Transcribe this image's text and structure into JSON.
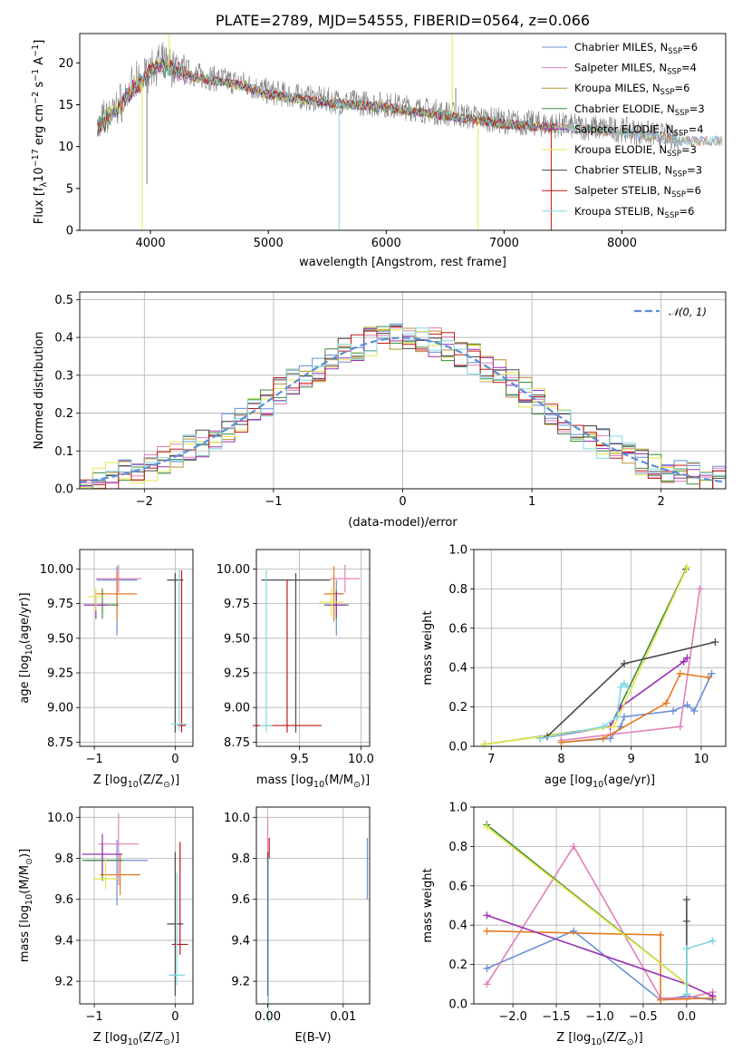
{
  "colors": {
    "chabrier_miles": "#6a8fd6",
    "salpeter_miles": "#e080b8",
    "kroupa_miles": "#b8902a",
    "chabrier_elodie": "#3f8a3f",
    "salpeter_elodie": "#9a30b0",
    "kroupa_elodie": "#e6e64a",
    "chabrier_stelib": "#4a4a4a",
    "salpeter_stelib": "#c01818",
    "kroupa_stelib": "#80d8e0",
    "orange": "#e87a20",
    "normal_curve": "#5a8fd6",
    "spectrum": "#808080"
  },
  "chart_data": [
    {
      "id": "spectrum",
      "type": "line",
      "title": "PLATE=2789, MJD=54555, FIBERID=0564, z=0.066",
      "xlabel": "wavelength [Angstrom, rest frame]",
      "ylabel": "Flux [f",
      "ylabel_sub": "λ",
      "ylabel_rest": "10",
      "ylabel_sup": "−17",
      "ylabel_tail": " erg cm",
      "ylabel_sup2": "−2",
      "ylabel_tail2": " s",
      "ylabel_sup3": "−1",
      "ylabel_tail3": " A",
      "ylabel_sup4": "−1",
      "ylabel_end": "]",
      "xlim": [
        3400,
        8880
      ],
      "ylim": [
        0,
        23.5
      ],
      "xticks": [
        4000,
        5000,
        6000,
        7000,
        8000
      ],
      "yticks": [
        0,
        5,
        10,
        15,
        20
      ],
      "legend_position": "top-right",
      "continuum": [
        [
          3550,
          12.5
        ],
        [
          3700,
          14.5
        ],
        [
          3850,
          17
        ],
        [
          3950,
          18.5
        ],
        [
          4050,
          20
        ],
        [
          4200,
          19.5
        ],
        [
          4400,
          18.5
        ],
        [
          4600,
          18
        ],
        [
          4800,
          17.5
        ],
        [
          5000,
          16.5
        ],
        [
          5500,
          15.5
        ],
        [
          6000,
          15
        ],
        [
          6500,
          14
        ],
        [
          7000,
          13
        ],
        [
          7500,
          12.5
        ],
        [
          8000,
          12
        ],
        [
          8500,
          11
        ]
      ],
      "spikes": [
        [
          3930,
          0
        ],
        [
          3970,
          5.5
        ],
        [
          4160,
          23.5
        ],
        [
          5600,
          0
        ],
        [
          6560,
          23.5
        ],
        [
          6590,
          17
        ],
        [
          6780,
          0
        ],
        [
          7400,
          0
        ]
      ],
      "legend": [
        {
          "pre": "Chabrier MILES, N",
          "sub": "SSP",
          "post": "=6",
          "color": "chabrier_miles"
        },
        {
          "pre": "Salpeter MILES, N",
          "sub": "SSP",
          "post": "=4",
          "color": "salpeter_miles"
        },
        {
          "pre": "Kroupa MILES, N",
          "sub": "SSP",
          "post": "=6",
          "color": "kroupa_miles"
        },
        {
          "pre": "Chabrier ELODIE, N",
          "sub": "SSP",
          "post": "=3",
          "color": "chabrier_elodie"
        },
        {
          "pre": "Salpeter ELODIE, N",
          "sub": "SSP",
          "post": "=4",
          "color": "salpeter_elodie"
        },
        {
          "pre": "Kroupa ELODIE, N",
          "sub": "SSP",
          "post": "=3",
          "color": "kroupa_elodie"
        },
        {
          "pre": "Chabrier STELIB, N",
          "sub": "SSP",
          "post": "=3",
          "color": "chabrier_stelib"
        },
        {
          "pre": "Salpeter STELIB, N",
          "sub": "SSP",
          "post": "=6",
          "color": "salpeter_stelib"
        },
        {
          "pre": "Kroupa STELIB, N",
          "sub": "SSP",
          "post": "=6",
          "color": "kroupa_stelib"
        }
      ]
    },
    {
      "id": "residuals",
      "type": "histogram",
      "xlabel": "(data-model)/error",
      "ylabel": "Normed distribution",
      "xlim": [
        -2.5,
        2.5
      ],
      "ylim": [
        0,
        0.52
      ],
      "xticks": [
        -2,
        -1,
        0,
        1,
        2
      ],
      "yticks": [
        0.0,
        0.1,
        0.2,
        0.3,
        0.4,
        0.5
      ],
      "grid": true,
      "legend_position": "top-right",
      "legend": "𝒩(0, 1)",
      "bin_width": 0.1,
      "normal_mean": 0,
      "normal_sigma": 1
    },
    {
      "id": "age_vs_Z",
      "type": "errorbar",
      "xlabel": "Z [log",
      "xlabel_sub": "10",
      "xlabel_tail": "(Z/Z",
      "xlabel_sub2": "⊙",
      "xlabel_end": ")]",
      "ylabel": "age  [log",
      "ylabel_sub": "10",
      "ylabel_tail": "(age/yr)]",
      "xlim": [
        -1.18,
        0.22
      ],
      "ylim": [
        8.72,
        10.14
      ],
      "xticks": [
        -1,
        0
      ],
      "yticks": [
        8.75,
        9.0,
        9.25,
        9.5,
        9.75,
        10.0
      ],
      "grid": true,
      "points": [
        {
          "color": "chabrier_miles",
          "x": -0.72,
          "xerr": 0.25,
          "y": 9.92,
          "yerr": [
            0.4,
            0.1
          ]
        },
        {
          "color": "salpeter_miles",
          "x": -0.7,
          "xerr": 0.28,
          "y": 9.93,
          "yerr": [
            0.1,
            0.1
          ]
        },
        {
          "color": "orange",
          "x": -0.72,
          "xerr": 0.25,
          "y": 9.82,
          "yerr": [
            0.2,
            0.16
          ]
        },
        {
          "color": "chabrier_elodie",
          "x": -0.9,
          "xerr": 0.2,
          "y": 9.74,
          "yerr": [
            0.1,
            0.12
          ]
        },
        {
          "color": "salpeter_elodie",
          "x": -0.98,
          "xerr": 0.15,
          "y": 9.74,
          "yerr": [
            0.1,
            0.1
          ]
        },
        {
          "color": "kroupa_elodie",
          "x": -0.98,
          "xerr": 0.1,
          "y": 9.8,
          "yerr": [
            0.1,
            0.06
          ]
        },
        {
          "color": "chabrier_stelib",
          "x": 0.0,
          "xerr": 0.1,
          "y": 9.92,
          "yerr": [
            1.1,
            0.05
          ]
        },
        {
          "color": "salpeter_stelib",
          "x": 0.08,
          "xerr": 0.05,
          "y": 8.87,
          "yerr": [
            0.05,
            1.12
          ]
        },
        {
          "color": "kroupa_stelib",
          "x": 0.05,
          "xerr": 0.1,
          "y": 8.88,
          "yerr": [
            0.05,
            1.12
          ]
        }
      ]
    },
    {
      "id": "age_vs_mass",
      "type": "errorbar",
      "xlabel": "mass [log",
      "xlabel_sub": "10",
      "xlabel_tail": "(M/M",
      "xlabel_sub2": "⊙",
      "xlabel_end": ")]",
      "xlim": [
        9.15,
        10.07
      ],
      "ylim": [
        8.72,
        10.14
      ],
      "xticks": [
        9.5,
        10.0
      ],
      "yticks": [
        8.75,
        9.0,
        9.25,
        9.5,
        9.75,
        10.0
      ],
      "grid": true,
      "points": [
        {
          "color": "chabrier_miles",
          "x": 9.8,
          "xerr": 0.06,
          "y": 9.82,
          "yerr": [
            0.3,
            0.1
          ]
        },
        {
          "color": "salpeter_miles",
          "x": 9.87,
          "xerr": 0.12,
          "y": 9.93,
          "yerr": [
            0.1,
            0.1
          ]
        },
        {
          "color": "orange",
          "x": 9.78,
          "xerr": 0.08,
          "y": 9.82,
          "yerr": [
            0.2,
            0.2
          ]
        },
        {
          "color": "chabrier_elodie",
          "x": 9.8,
          "xerr": 0.1,
          "y": 9.74,
          "yerr": [
            0.1,
            0.1
          ]
        },
        {
          "color": "salpeter_elodie",
          "x": 9.8,
          "xerr": 0.08,
          "y": 9.74,
          "yerr": [
            0.08,
            0.1
          ]
        },
        {
          "color": "kroupa_elodie",
          "x": 9.76,
          "xerr": 0.1,
          "y": 9.76,
          "yerr": [
            0.1,
            0.1
          ]
        },
        {
          "color": "chabrier_stelib",
          "x": 9.47,
          "xerr": 0.28,
          "y": 9.92,
          "yerr": [
            1.1,
            0.05
          ]
        },
        {
          "color": "salpeter_stelib",
          "x": 9.4,
          "xerr": 0.28,
          "y": 8.87,
          "yerr": [
            0.05,
            1.05
          ]
        },
        {
          "color": "kroupa_stelib",
          "x": 9.23,
          "xerr": 0.05,
          "y": 8.87,
          "yerr": [
            0.05,
            1.12
          ]
        }
      ]
    },
    {
      "id": "mass_weight_vs_age",
      "type": "line",
      "xlabel": "age  [log",
      "xlabel_sub": "10",
      "xlabel_tail": "(age/yr)]",
      "ylabel": "mass weight",
      "xlim": [
        6.75,
        10.35
      ],
      "ylim": [
        0,
        1.0
      ],
      "xticks": [
        7,
        8,
        9,
        10
      ],
      "yticks": [
        0.0,
        0.2,
        0.4,
        0.6,
        0.8,
        1.0
      ],
      "grid": true,
      "series": [
        {
          "color": "chabrier_miles",
          "x": [
            8.0,
            8.7,
            8.85,
            8.9,
            9.6,
            9.8,
            9.9,
            10.15
          ],
          "y": [
            0.02,
            0.04,
            0.1,
            0.15,
            0.18,
            0.21,
            0.18,
            0.37
          ]
        },
        {
          "color": "salpeter_miles",
          "x": [
            8.0,
            8.7,
            9.7,
            9.98
          ],
          "y": [
            0.03,
            0.06,
            0.1,
            0.8
          ]
        },
        {
          "color": "orange",
          "x": [
            8.0,
            8.6,
            9.5,
            9.7,
            10.1
          ],
          "y": [
            0.02,
            0.04,
            0.22,
            0.37,
            0.35
          ]
        },
        {
          "color": "chabrier_elodie",
          "x": [
            6.9,
            8.7,
            9.78
          ],
          "y": [
            0.01,
            0.1,
            0.9
          ]
        },
        {
          "color": "salpeter_elodie",
          "x": [
            7.7,
            8.7,
            8.85,
            9.75,
            9.8
          ],
          "y": [
            0.04,
            0.1,
            0.2,
            0.43,
            0.45
          ]
        },
        {
          "color": "kroupa_elodie",
          "x": [
            6.9,
            8.75,
            9.8
          ],
          "y": [
            0.01,
            0.1,
            0.91
          ]
        },
        {
          "color": "chabrier_stelib",
          "x": [
            7.8,
            8.9,
            10.2
          ],
          "y": [
            0.05,
            0.42,
            0.53
          ]
        },
        {
          "color": "kroupa_stelib",
          "x": [
            7.7,
            8.6,
            8.8,
            8.85,
            8.9,
            8.95
          ],
          "y": [
            0.04,
            0.1,
            0.15,
            0.3,
            0.32,
            0.3
          ]
        }
      ]
    },
    {
      "id": "mass_vs_Z",
      "type": "errorbar",
      "xlabel": "Z [log",
      "xlabel_sub": "10",
      "xlabel_tail": "(Z/Z",
      "xlabel_sub2": "⊙",
      "xlabel_end": ")]",
      "ylabel": "mass [log",
      "ylabel_sub": "10",
      "ylabel_tail": "(M/M",
      "ylabel_sub2": "⊙",
      "ylabel_end": ")]",
      "xlim": [
        -1.18,
        0.22
      ],
      "ylim": [
        9.09,
        10.05
      ],
      "xticks": [
        -1,
        0
      ],
      "yticks": [
        9.2,
        9.4,
        9.6,
        9.8,
        10.0
      ],
      "grid": true,
      "points": [
        {
          "color": "chabrier_miles",
          "x": -0.72,
          "xerr": 0.38,
          "y": 9.79,
          "yerr": [
            0.22,
            0.1
          ]
        },
        {
          "color": "salpeter_miles",
          "x": -0.7,
          "xerr": 0.25,
          "y": 9.87,
          "yerr": [
            0.2,
            0.15
          ]
        },
        {
          "color": "orange",
          "x": -0.68,
          "xerr": 0.25,
          "y": 9.72,
          "yerr": [
            0.1,
            0.1
          ]
        },
        {
          "color": "chabrier_elodie",
          "x": -0.9,
          "xerr": 0.25,
          "y": 9.79,
          "yerr": [
            0.1,
            0.08
          ]
        },
        {
          "color": "salpeter_elodie",
          "x": -0.9,
          "xerr": 0.25,
          "y": 9.82,
          "yerr": [
            0.1,
            0.1
          ]
        },
        {
          "color": "kroupa_elodie",
          "x": -0.86,
          "xerr": 0.15,
          "y": 9.7,
          "yerr": [
            0.05,
            0.1
          ]
        },
        {
          "color": "chabrier_stelib",
          "x": 0.0,
          "xerr": 0.1,
          "y": 9.48,
          "yerr": [
            0.35,
            0.35
          ]
        },
        {
          "color": "salpeter_stelib",
          "x": 0.06,
          "xerr": 0.1,
          "y": 9.38,
          "yerr": [
            0.05,
            0.5
          ]
        },
        {
          "color": "kroupa_stelib",
          "x": 0.02,
          "xerr": 0.1,
          "y": 9.23,
          "yerr": [
            0.05,
            0.5
          ]
        }
      ]
    },
    {
      "id": "mass_vs_ebv",
      "type": "errorbar",
      "xlabel": "E(B-V)",
      "xlim": [
        -0.0015,
        0.0135
      ],
      "ylim": [
        9.09,
        10.05
      ],
      "xticks": [
        0.0,
        0.01
      ],
      "yticks": [
        9.2,
        9.4,
        9.6,
        9.8,
        10.0
      ],
      "grid": true,
      "points": [
        {
          "color": "chabrier_miles",
          "x": 0.0132,
          "y": 9.75,
          "yerr": [
            0.15,
            0.15
          ]
        },
        {
          "color": "salpeter_miles",
          "x": 0.0,
          "y": 9.87,
          "yerr": [
            0.1,
            0.13
          ]
        },
        {
          "color": "salpeter_stelib",
          "x": 0.0002,
          "y": 9.85,
          "yerr": [
            0.05,
            0.05
          ]
        },
        {
          "color": "chabrier_stelib",
          "x": 0.0,
          "y": 9.48,
          "yerr": [
            0.35,
            0.35
          ]
        },
        {
          "color": "kroupa_stelib",
          "x": 0.0001,
          "y": 9.5,
          "yerr": [
            0.5,
            0.3
          ]
        }
      ]
    },
    {
      "id": "mass_weight_vs_Z",
      "type": "line",
      "xlabel": "Z [log",
      "xlabel_sub": "10",
      "xlabel_tail": "(Z/Z",
      "xlabel_sub2": "⊙",
      "xlabel_end": ")]",
      "ylabel": "mass weight",
      "xlim": [
        -2.45,
        0.45
      ],
      "ylim": [
        0,
        1.0
      ],
      "xticks": [
        -2.0,
        -1.5,
        -1.0,
        -0.5,
        0.0
      ],
      "yticks": [
        0.0,
        0.2,
        0.4,
        0.6,
        0.8,
        1.0
      ],
      "grid": true,
      "series": [
        {
          "color": "chabrier_miles",
          "x": [
            -2.3,
            -1.3,
            -0.3,
            0.0,
            0.3
          ],
          "y": [
            0.18,
            0.37,
            0.02,
            0.04,
            0.02
          ]
        },
        {
          "color": "salpeter_miles",
          "x": [
            -2.3,
            -1.3,
            -0.3,
            0.0,
            0.3
          ],
          "y": [
            0.1,
            0.8,
            0.03,
            0.03,
            0.06
          ]
        },
        {
          "color": "orange",
          "x": [
            -2.3,
            -0.3,
            -0.3,
            0.3
          ],
          "y": [
            0.37,
            0.35,
            0.02,
            0.03
          ]
        },
        {
          "color": "chabrier_elodie",
          "x": [
            -2.3,
            0.0
          ],
          "y": [
            0.91,
            0.1
          ]
        },
        {
          "color": "salpeter_elodie",
          "x": [
            -2.3,
            0.0,
            0.3
          ],
          "y": [
            0.45,
            0.1,
            0.04
          ]
        },
        {
          "color": "kroupa_elodie",
          "x": [
            -2.3,
            0.0
          ],
          "y": [
            0.9,
            0.1
          ]
        },
        {
          "color": "chabrier_stelib",
          "x": [
            0.0,
            0.0,
            0.0
          ],
          "y": [
            0.05,
            0.42,
            0.53
          ]
        },
        {
          "color": "kroupa_stelib",
          "x": [
            0.0,
            0.0,
            0.3,
            0.3
          ],
          "y": [
            0.05,
            0.28,
            0.32,
            0.32
          ]
        }
      ]
    }
  ]
}
